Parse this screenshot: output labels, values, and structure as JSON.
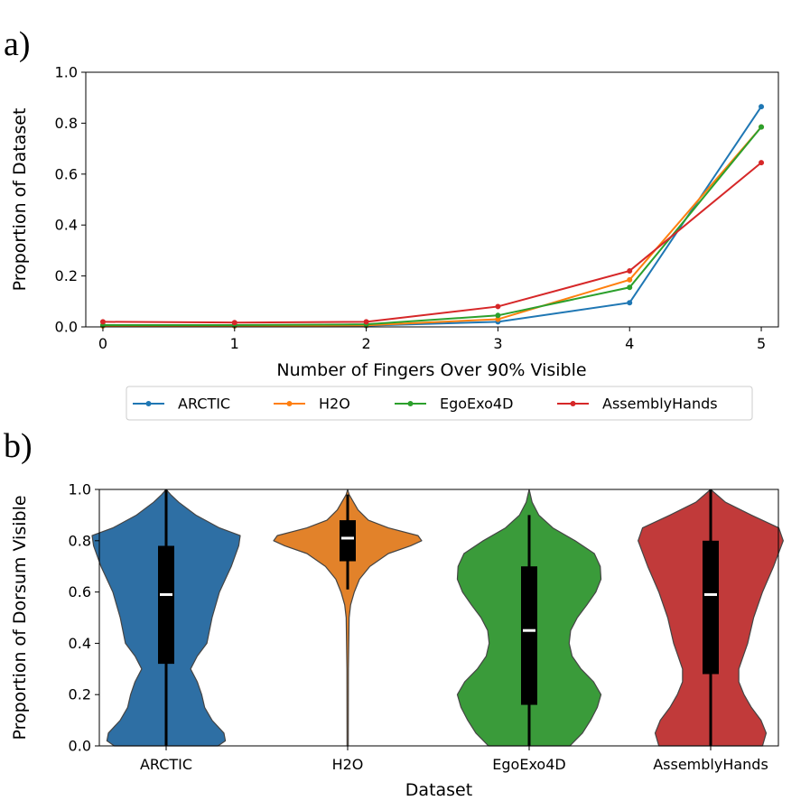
{
  "panels": {
    "a_label": "a)",
    "b_label": "b)"
  },
  "chart_data": [
    {
      "type": "line",
      "title": "",
      "xlabel": "Number of Fingers Over 90% Visible",
      "ylabel": "Proportion of Dataset",
      "x": [
        0,
        1,
        2,
        3,
        4,
        5
      ],
      "xlim": [
        -0.13,
        5.13
      ],
      "ylim": [
        0,
        1.0
      ],
      "xticks": [
        "0",
        "1",
        "2",
        "3",
        "4",
        "5"
      ],
      "yticks": [
        "0.0",
        "0.2",
        "0.4",
        "0.6",
        "0.8",
        "1.0"
      ],
      "grid": false,
      "legend_position": "below",
      "series": [
        {
          "name": "ARCTIC",
          "color": "#1f77b4",
          "values": [
            0.005,
            0.004,
            0.005,
            0.02,
            0.095,
            0.865
          ]
        },
        {
          "name": "H2O",
          "color": "#ff7f0e",
          "values": [
            0.004,
            0.004,
            0.006,
            0.03,
            0.185,
            0.785
          ]
        },
        {
          "name": "EgoExo4D",
          "color": "#2ca02c",
          "values": [
            0.007,
            0.007,
            0.01,
            0.045,
            0.155,
            0.785
          ]
        },
        {
          "name": "AssemblyHands",
          "color": "#d62728",
          "values": [
            0.02,
            0.017,
            0.02,
            0.08,
            0.22,
            0.645
          ]
        }
      ]
    },
    {
      "type": "violin",
      "title": "",
      "xlabel": "Dataset",
      "ylabel": "Proportion of Dorsum Visible",
      "categories": [
        "ARCTIC",
        "H2O",
        "EgoExo4D",
        "AssemblyHands"
      ],
      "ylim": [
        0,
        1.0
      ],
      "yticks": [
        "0.0",
        "0.2",
        "0.4",
        "0.6",
        "0.8",
        "1.0"
      ],
      "grid": false,
      "series": [
        {
          "name": "ARCTIC",
          "color": "#2e6fa4",
          "median": 0.59,
          "q1": 0.32,
          "q3": 0.78,
          "min": 0.0,
          "max": 1.0,
          "density": [
            [
              0.0,
              0.7
            ],
            [
              0.02,
              0.8
            ],
            [
              0.05,
              0.78
            ],
            [
              0.1,
              0.62
            ],
            [
              0.15,
              0.52
            ],
            [
              0.2,
              0.48
            ],
            [
              0.25,
              0.42
            ],
            [
              0.3,
              0.33
            ],
            [
              0.35,
              0.42
            ],
            [
              0.4,
              0.55
            ],
            [
              0.5,
              0.62
            ],
            [
              0.6,
              0.72
            ],
            [
              0.7,
              0.88
            ],
            [
              0.78,
              0.98
            ],
            [
              0.82,
              1.0
            ],
            [
              0.85,
              0.72
            ],
            [
              0.9,
              0.4
            ],
            [
              0.95,
              0.17
            ],
            [
              0.98,
              0.06
            ],
            [
              1.0,
              0.0
            ]
          ]
        },
        {
          "name": "H2O",
          "color": "#e2822a",
          "median": 0.81,
          "q1": 0.72,
          "q3": 0.88,
          "min": 0.61,
          "max": 0.98,
          "density": [
            [
              0.0,
              0.008
            ],
            [
              0.3,
              0.01
            ],
            [
              0.5,
              0.02
            ],
            [
              0.55,
              0.04
            ],
            [
              0.6,
              0.09
            ],
            [
              0.65,
              0.16
            ],
            [
              0.7,
              0.3
            ],
            [
              0.75,
              0.55
            ],
            [
              0.78,
              0.85
            ],
            [
              0.8,
              1.0
            ],
            [
              0.82,
              0.95
            ],
            [
              0.85,
              0.55
            ],
            [
              0.88,
              0.28
            ],
            [
              0.92,
              0.14
            ],
            [
              0.95,
              0.08
            ],
            [
              0.98,
              0.02
            ],
            [
              1.0,
              0.0
            ]
          ]
        },
        {
          "name": "EgoExo4D",
          "color": "#3a9b3a",
          "median": 0.45,
          "q1": 0.16,
          "q3": 0.7,
          "min": 0.0,
          "max": 0.9,
          "density": [
            [
              0.0,
              0.55
            ],
            [
              0.05,
              0.72
            ],
            [
              0.1,
              0.83
            ],
            [
              0.15,
              0.92
            ],
            [
              0.2,
              0.97
            ],
            [
              0.25,
              0.87
            ],
            [
              0.3,
              0.7
            ],
            [
              0.35,
              0.58
            ],
            [
              0.4,
              0.54
            ],
            [
              0.45,
              0.56
            ],
            [
              0.5,
              0.65
            ],
            [
              0.55,
              0.78
            ],
            [
              0.6,
              0.9
            ],
            [
              0.65,
              0.97
            ],
            [
              0.7,
              0.96
            ],
            [
              0.75,
              0.88
            ],
            [
              0.8,
              0.62
            ],
            [
              0.85,
              0.32
            ],
            [
              0.9,
              0.13
            ],
            [
              0.95,
              0.04
            ],
            [
              1.0,
              0.0
            ]
          ]
        },
        {
          "name": "AssemblyHands",
          "color": "#c13a3a",
          "median": 0.59,
          "q1": 0.28,
          "q3": 0.8,
          "min": 0.0,
          "max": 1.0,
          "density": [
            [
              0.0,
              0.7
            ],
            [
              0.05,
              0.75
            ],
            [
              0.1,
              0.68
            ],
            [
              0.15,
              0.55
            ],
            [
              0.2,
              0.45
            ],
            [
              0.25,
              0.38
            ],
            [
              0.3,
              0.38
            ],
            [
              0.35,
              0.44
            ],
            [
              0.4,
              0.5
            ],
            [
              0.5,
              0.58
            ],
            [
              0.6,
              0.7
            ],
            [
              0.7,
              0.85
            ],
            [
              0.8,
              0.98
            ],
            [
              0.85,
              0.92
            ],
            [
              0.9,
              0.55
            ],
            [
              0.95,
              0.2
            ],
            [
              1.0,
              0.0
            ]
          ]
        }
      ]
    }
  ]
}
